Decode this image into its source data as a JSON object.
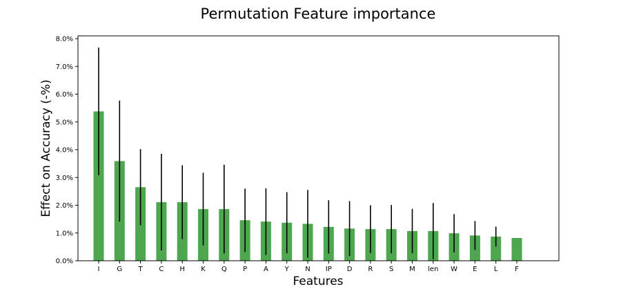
{
  "chart_data": {
    "type": "bar",
    "title": "Permutation Feature importance",
    "xlabel": "Features",
    "ylabel": "Effect on Accuracy (-%)",
    "categories": [
      "I",
      "G",
      "T",
      "C",
      "H",
      "K",
      "Q",
      "P",
      "A",
      "Y",
      "N",
      "IP",
      "D",
      "R",
      "S",
      "M",
      "len",
      "W",
      "E",
      "L",
      "F"
    ],
    "values": [
      5.38,
      3.59,
      2.65,
      2.11,
      2.11,
      1.86,
      1.86,
      1.46,
      1.41,
      1.37,
      1.33,
      1.22,
      1.16,
      1.14,
      1.14,
      1.07,
      1.07,
      0.99,
      0.91,
      0.87,
      0.82
    ],
    "errors": [
      2.3,
      2.18,
      1.37,
      1.74,
      1.33,
      1.31,
      1.6,
      1.14,
      1.2,
      1.1,
      1.22,
      0.96,
      0.99,
      0.86,
      0.87,
      0.8,
      1.01,
      0.69,
      0.52,
      0.36,
      0
    ],
    "ylim": [
      0,
      8.1
    ],
    "yticks": [
      0,
      1,
      2,
      3,
      4,
      5,
      6,
      7,
      8
    ],
    "ytick_format": "percent_1dp",
    "bar_color": "#4ea64e",
    "error_color": "#000000",
    "grid": false,
    "legend": "none"
  }
}
